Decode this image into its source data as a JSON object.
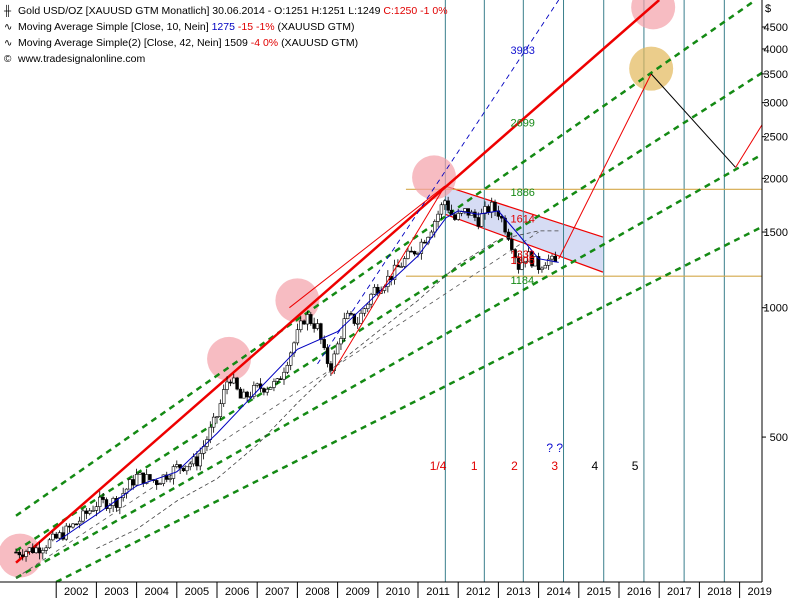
{
  "legend": {
    "gold_label": "Gold USD/OZ [XAUUSD GTM  Monatlich] 30.06.2014 - O:1251 H:1251 L:1249",
    "gold_close": "C:1250 -1 0%",
    "ma10_label": "Moving Average Simple [Close, 10, Nein]",
    "ma10_value": "1275",
    "ma10_change": "-15 -1%",
    "ma10_source": "(XAUUSD GTM)",
    "ma42_label": "Moving Average Simple(2) [Close, 42, Nein]",
    "ma42_value": "1509",
    "ma42_change": "-4 0%",
    "ma42_source": "(XAUUSD GTM)",
    "website": "www.tradesignalonline.com"
  },
  "chart_data": {
    "type": "candlestick",
    "y_axis_unit": "$",
    "y_scale": "log",
    "ylim": [
      230,
      5200
    ],
    "y_ticks": [
      500,
      1000,
      1500,
      2000,
      2500,
      3000,
      3500,
      4000,
      4500
    ],
    "x_ticks": [
      "2002",
      "2003",
      "2004",
      "2005",
      "2006",
      "2007",
      "2008",
      "2009",
      "2010",
      "2011",
      "2012",
      "2013",
      "2014",
      "2015",
      "2016",
      "2017",
      "2018",
      "2019"
    ],
    "price_path": [
      [
        2001.0,
        270
      ],
      [
        2001.5,
        275
      ],
      [
        2002.0,
        290
      ],
      [
        2002.5,
        315
      ],
      [
        2003.0,
        350
      ],
      [
        2003.5,
        355
      ],
      [
        2004.0,
        405
      ],
      [
        2004.5,
        395
      ],
      [
        2005.0,
        425
      ],
      [
        2005.5,
        440
      ],
      [
        2006.0,
        560
      ],
      [
        2006.3,
        700
      ],
      [
        2006.6,
        610
      ],
      [
        2007.0,
        650
      ],
      [
        2007.5,
        665
      ],
      [
        2007.8,
        780
      ],
      [
        2008.2,
        960
      ],
      [
        2008.5,
        900
      ],
      [
        2008.7,
        760
      ],
      [
        2008.85,
        730
      ],
      [
        2009.2,
        950
      ],
      [
        2009.5,
        930
      ],
      [
        2009.9,
        1100
      ],
      [
        2010.3,
        1180
      ],
      [
        2010.7,
        1300
      ],
      [
        2011.0,
        1380
      ],
      [
        2011.3,
        1520
      ],
      [
        2011.67,
        1780
      ],
      [
        2011.9,
        1600
      ],
      [
        2012.2,
        1680
      ],
      [
        2012.5,
        1600
      ],
      [
        2012.8,
        1720
      ],
      [
        2013.0,
        1670
      ],
      [
        2013.3,
        1450
      ],
      [
        2013.5,
        1250
      ],
      [
        2013.7,
        1330
      ],
      [
        2014.0,
        1250
      ],
      [
        2014.2,
        1300
      ],
      [
        2014.5,
        1250
      ]
    ],
    "ma10": [
      [
        2002.0,
        285
      ],
      [
        2003.0,
        330
      ],
      [
        2004.0,
        385
      ],
      [
        2005.0,
        415
      ],
      [
        2006.0,
        510
      ],
      [
        2007.0,
        640
      ],
      [
        2008.0,
        800
      ],
      [
        2009.0,
        880
      ],
      [
        2010.0,
        1080
      ],
      [
        2011.0,
        1320
      ],
      [
        2011.7,
        1620
      ],
      [
        2012.0,
        1680
      ],
      [
        2012.5,
        1650
      ],
      [
        2013.0,
        1680
      ],
      [
        2013.5,
        1480
      ],
      [
        2014.0,
        1300
      ],
      [
        2014.5,
        1275
      ]
    ],
    "ma42": [
      [
        2003.0,
        275
      ],
      [
        2004.0,
        305
      ],
      [
        2005.0,
        355
      ],
      [
        2006.0,
        400
      ],
      [
        2007.0,
        480
      ],
      [
        2008.0,
        600
      ],
      [
        2009.0,
        740
      ],
      [
        2010.0,
        880
      ],
      [
        2011.0,
        1040
      ],
      [
        2012.0,
        1260
      ],
      [
        2013.0,
        1440
      ],
      [
        2014.0,
        1509
      ],
      [
        2014.5,
        1509
      ]
    ],
    "annotations": {
      "horizontal_levels": [
        1886,
        1184
      ],
      "level_labels": [
        {
          "text": "3983",
          "x": 2013.3,
          "y": 3983
        },
        {
          "text": "2699",
          "x": 2013.3,
          "y": 2699
        },
        {
          "text": "1886",
          "x": 2013.3,
          "y": 1860
        },
        {
          "text": "1614",
          "x": 2013.3,
          "y": 1614
        },
        {
          "text": "1332",
          "x": 2013.3,
          "y": 1332
        },
        {
          "text": "1305",
          "x": 2013.3,
          "y": 1290
        },
        {
          "text": "1184",
          "x": 2013.3,
          "y": 1160
        }
      ],
      "cycle_labels": [
        {
          "text": "1/4",
          "x": 2011.5
        },
        {
          "text": "1",
          "x": 2012.4
        },
        {
          "text": "2",
          "x": 2013.4
        },
        {
          "text": "3",
          "x": 2014.4
        },
        {
          "text": "4",
          "x": 2015.4
        },
        {
          "text": "5",
          "x": 2016.4
        }
      ],
      "question_marks": "? ?",
      "cycle_lines_x": [
        2011.68,
        2012.65,
        2013.62,
        2014.62,
        2015.62,
        2016.62,
        2017.62,
        2018.62,
        2019.62
      ],
      "main_channel": [
        [
          2001.0,
          255
        ],
        [
          2017.0,
          5200
        ]
      ],
      "upper_channels": [
        [
          [
            2001.0,
            328
          ],
          [
            2019.4,
            5200
          ]
        ],
        [
          [
            2001.0,
            272
          ],
          [
            2019.9,
            3690
          ]
        ],
        [
          [
            2001.0,
            235
          ],
          [
            2019.9,
            2370
          ]
        ],
        [
          [
            2002.0,
            230
          ],
          [
            2019.9,
            1600
          ]
        ]
      ],
      "blue_trend": [
        [
          2008.5,
          740
        ],
        [
          2014.5,
          5200
        ]
      ],
      "grey_trend": [
        [
          2001.0,
          235
        ],
        [
          2014.0,
          1500
        ]
      ],
      "down_channel": {
        "upper": [
          [
            2011.67,
            1920
          ],
          [
            2015.6,
            1460
          ]
        ],
        "lower": [
          [
            2011.67,
            1650
          ],
          [
            2015.6,
            1210
          ]
        ],
        "fill": "#c8d0f0"
      },
      "red_zigzag": [
        [
          2007.8,
          1000
        ],
        [
          2011.67,
          1920
        ],
        [
          2008.85,
          700
        ]
      ],
      "forecast_red": [
        [
          2014.5,
          1300
        ],
        [
          2016.8,
          3500
        ]
      ],
      "forecast_black": [
        [
          2016.8,
          3500
        ],
        [
          2018.9,
          2120
        ]
      ],
      "forecast_red2": [
        [
          2018.9,
          2120
        ],
        [
          2019.9,
          3000
        ]
      ],
      "circles": [
        {
          "x": 2001.1,
          "y": 265,
          "color": "#f3a0a8"
        },
        {
          "x": 2006.3,
          "y": 760,
          "color": "#f3a0a8"
        },
        {
          "x": 2008.0,
          "y": 1040,
          "color": "#f3a0a8"
        },
        {
          "x": 2011.4,
          "y": 2010,
          "color": "#f3a0a8"
        },
        {
          "x": 2016.85,
          "y": 5000,
          "color": "#f3a0a8"
        },
        {
          "x": 2016.8,
          "y": 3600,
          "color": "#e3b85a"
        }
      ]
    },
    "colors": {
      "candle_up": "#ffffff",
      "candle_down": "#000000",
      "ma10": "#0000c0",
      "ma42": "#404040",
      "main_channel": "#ee0000",
      "green_channels": "#148a14",
      "level_line": "#d4a84a",
      "cycle_line": "#3a7f8c",
      "text_red": "#e00000",
      "text_green": "#188a18",
      "text_blue": "#1010d0"
    }
  }
}
